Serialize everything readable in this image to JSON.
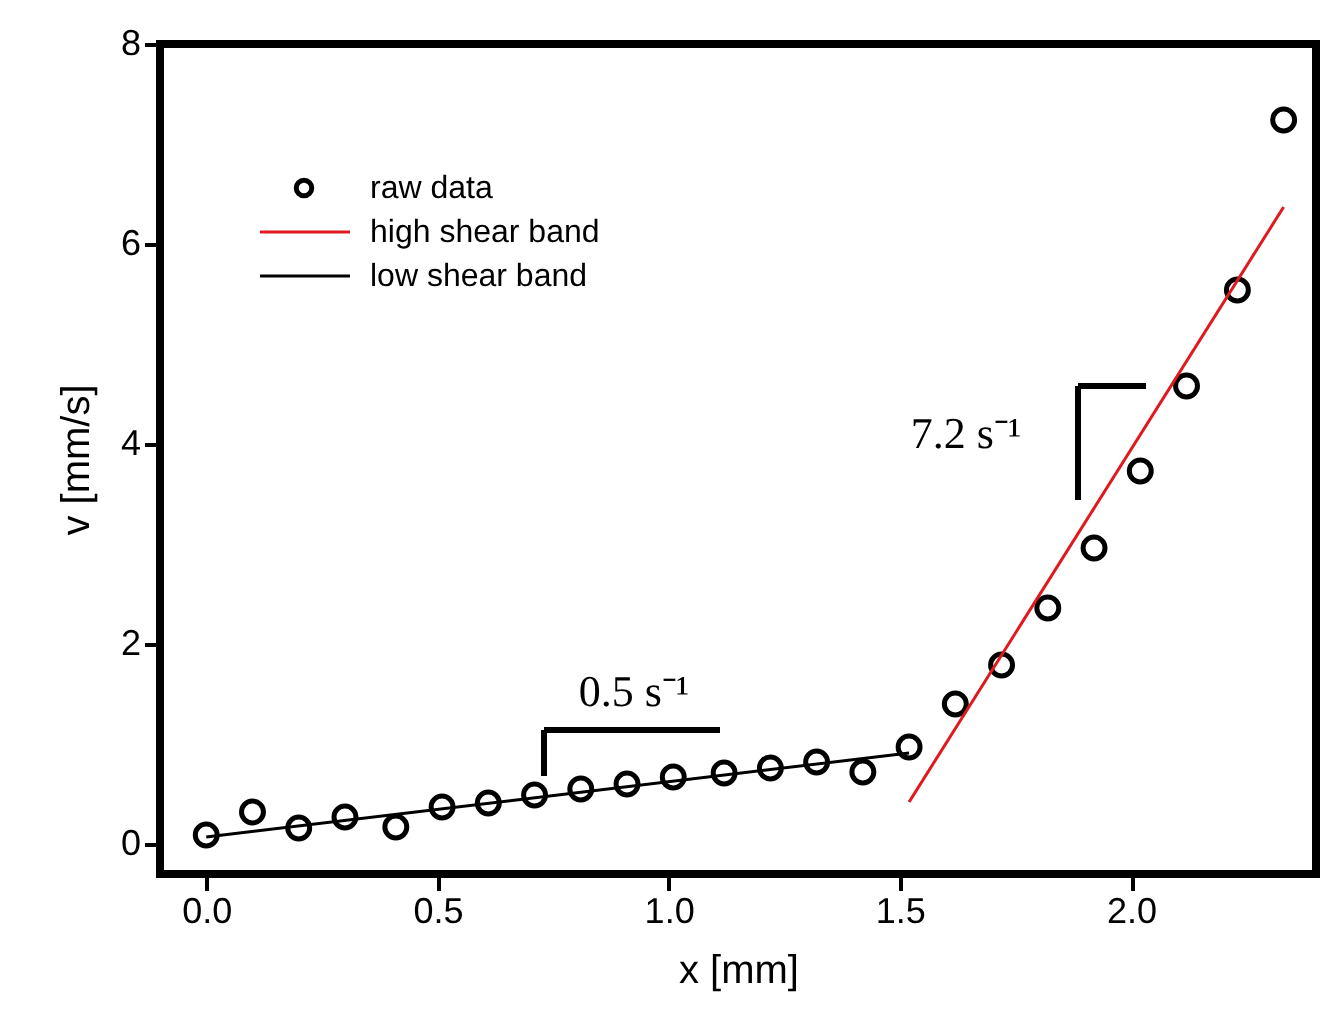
{
  "chart_data": {
    "type": "scatter",
    "xlabel": "x [mm]",
    "ylabel": "v [mm/s]",
    "xlim": [
      -0.1,
      2.4
    ],
    "xticks": [
      {
        "value": 0,
        "label": "0.0"
      },
      {
        "value": 0.5,
        "label": "0.5"
      },
      {
        "value": 1,
        "label": "1.0"
      },
      {
        "value": 1.5,
        "label": "1.5"
      },
      {
        "value": 2,
        "label": "2.0"
      }
    ],
    "ylim": [
      -0.3,
      8
    ],
    "yticks": [
      0,
      2,
      4,
      6,
      8
    ],
    "grid": false,
    "legend": "top left",
    "series": [
      {
        "name": "raw data",
        "marker": "circle",
        "color": "#000000",
        "x": [
          0.0,
          0.1,
          0.2,
          0.3,
          0.41,
          0.51,
          0.61,
          0.71,
          0.81,
          0.91,
          1.01,
          1.12,
          1.22,
          1.32,
          1.42,
          1.52,
          1.62,
          1.72,
          1.82,
          1.92,
          2.02,
          2.12,
          2.23,
          2.33
        ],
        "values": [
          0.09,
          0.32,
          0.16,
          0.27,
          0.17,
          0.37,
          0.41,
          0.49,
          0.55,
          0.6,
          0.67,
          0.71,
          0.76,
          0.82,
          0.72,
          0.97,
          1.4,
          1.79,
          2.36,
          2.96,
          3.73,
          4.58,
          5.54,
          7.24
        ]
      },
      {
        "name": "high shear band",
        "type": "line",
        "line_style": "solid",
        "color": "#e0191e",
        "x": [
          1.52,
          2.33
        ],
        "values": [
          0.42,
          6.37
        ]
      },
      {
        "name": "low shear band",
        "type": "line",
        "line_style": "solid",
        "color": "#000000",
        "x": [
          0.0,
          1.52
        ],
        "values": [
          0.07,
          0.91
        ]
      }
    ],
    "annotations": [
      "0.5 s⁻¹",
      "7.2 s⁻¹"
    ]
  }
}
